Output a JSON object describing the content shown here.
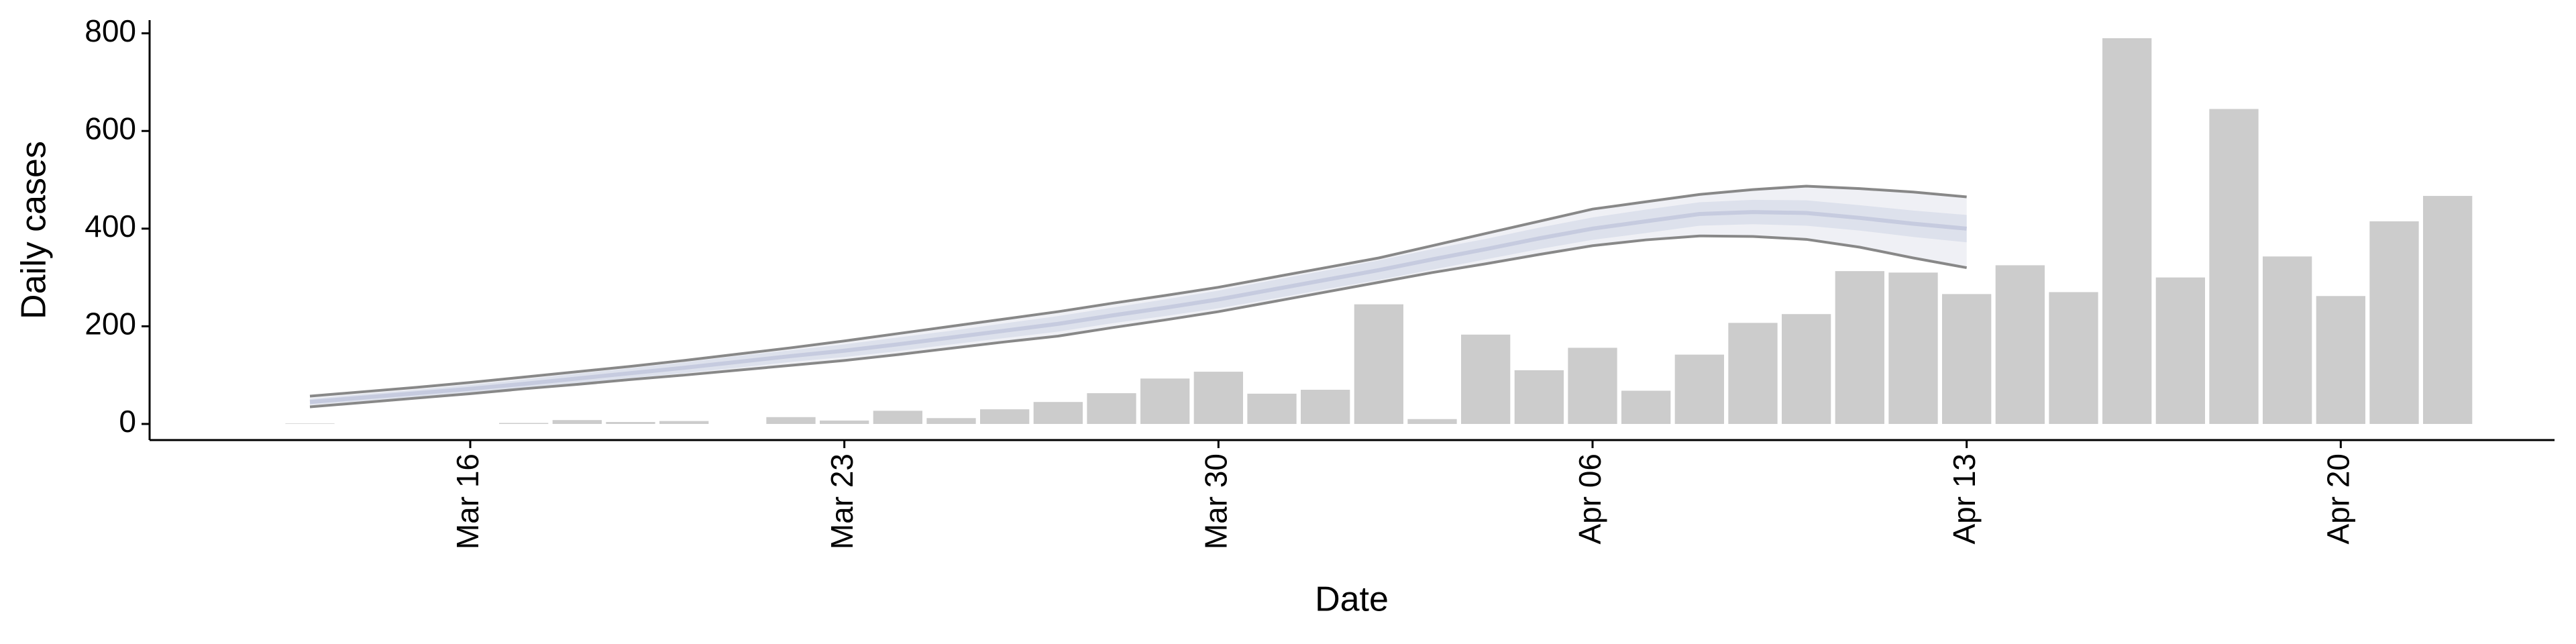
{
  "chart_data": {
    "type": "bar",
    "x_label": "Date",
    "y_label": "Daily cases",
    "x": [
      "Mar 13",
      "Mar 14",
      "Mar 15",
      "Mar 16",
      "Mar 17",
      "Mar 18",
      "Mar 19",
      "Mar 20",
      "Mar 21",
      "Mar 22",
      "Mar 23",
      "Mar 24",
      "Mar 25",
      "Mar 26",
      "Mar 27",
      "Mar 28",
      "Mar 29",
      "Mar 30",
      "Mar 31",
      "Apr 01",
      "Apr 02",
      "Apr 03",
      "Apr 04",
      "Apr 05",
      "Apr 06",
      "Apr 07",
      "Apr 08",
      "Apr 09",
      "Apr 10",
      "Apr 11",
      "Apr 12",
      "Apr 13",
      "Apr 14",
      "Apr 15",
      "Apr 16",
      "Apr 17",
      "Apr 18",
      "Apr 19",
      "Apr 20",
      "Apr 21",
      "Apr 22"
    ],
    "values": [
      1,
      0,
      0,
      0,
      2,
      8,
      4,
      6,
      0,
      14,
      7,
      27,
      12,
      30,
      45,
      63,
      93,
      107,
      62,
      70,
      245,
      10,
      183,
      110,
      156,
      68,
      142,
      207,
      225,
      313,
      310,
      266,
      325,
      270,
      790,
      300,
      645,
      343,
      262,
      415,
      467
    ],
    "color": "#cccccc",
    "estimate": {
      "x": [
        "Mar 13",
        "Mar 14",
        "Mar 15",
        "Mar 16",
        "Mar 17",
        "Mar 18",
        "Mar 19",
        "Mar 20",
        "Mar 21",
        "Mar 22",
        "Mar 23",
        "Mar 24",
        "Mar 25",
        "Mar 26",
        "Mar 27",
        "Mar 28",
        "Mar 29",
        "Mar 30",
        "Mar 31",
        "Apr 01",
        "Apr 02",
        "Apr 03",
        "Apr 04",
        "Apr 05",
        "Apr 06",
        "Apr 07",
        "Apr 08",
        "Apr 09",
        "Apr 10",
        "Apr 11",
        "Apr 12",
        "Apr 13"
      ],
      "median": [
        45,
        54,
        63,
        72,
        82,
        93,
        104,
        115,
        127,
        139,
        150,
        163,
        177,
        191,
        205,
        222,
        238,
        255,
        275,
        295,
        315,
        337,
        358,
        380,
        400,
        415,
        430,
        434,
        432,
        422,
        410,
        400
      ],
      "lower_90": [
        35,
        44,
        53,
        62,
        72,
        81,
        91,
        100,
        110,
        120,
        130,
        142,
        155,
        168,
        180,
        197,
        213,
        230,
        250,
        270,
        290,
        310,
        328,
        347,
        365,
        377,
        385,
        384,
        378,
        362,
        340,
        320
      ],
      "upper_90": [
        57,
        66,
        75,
        85,
        96,
        107,
        118,
        130,
        143,
        156,
        170,
        185,
        200,
        215,
        230,
        247,
        263,
        280,
        300,
        320,
        340,
        365,
        390,
        415,
        440,
        455,
        470,
        480,
        487,
        482,
        475,
        465
      ],
      "lower_50": [
        39,
        47,
        56,
        64,
        73,
        83,
        94,
        104,
        115,
        127,
        137,
        149,
        163,
        176,
        189,
        206,
        221,
        237,
        256,
        276,
        295,
        316,
        337,
        358,
        377,
        391,
        406,
        409,
        406,
        396,
        383,
        372
      ],
      "upper_50": [
        51,
        61,
        70,
        80,
        91,
        103,
        114,
        126,
        139,
        151,
        163,
        177,
        191,
        206,
        221,
        238,
        255,
        273,
        294,
        314,
        335,
        358,
        379,
        402,
        423,
        439,
        454,
        459,
        458,
        448,
        437,
        428
      ],
      "band_90_color": "#eff0f5",
      "band_50_color": "#dde1ec",
      "median_color": "#c6cbdf",
      "bound_color": "#888888"
    },
    "xlim": [
      "Mar 10",
      "Apr 24"
    ],
    "xticks": [
      "Mar 16",
      "Mar 23",
      "Mar 30",
      "Apr 06",
      "Apr 13",
      "Apr 20"
    ],
    "ylim": [
      -33,
      827
    ],
    "yticks": [
      0,
      200,
      400,
      600,
      800
    ]
  }
}
